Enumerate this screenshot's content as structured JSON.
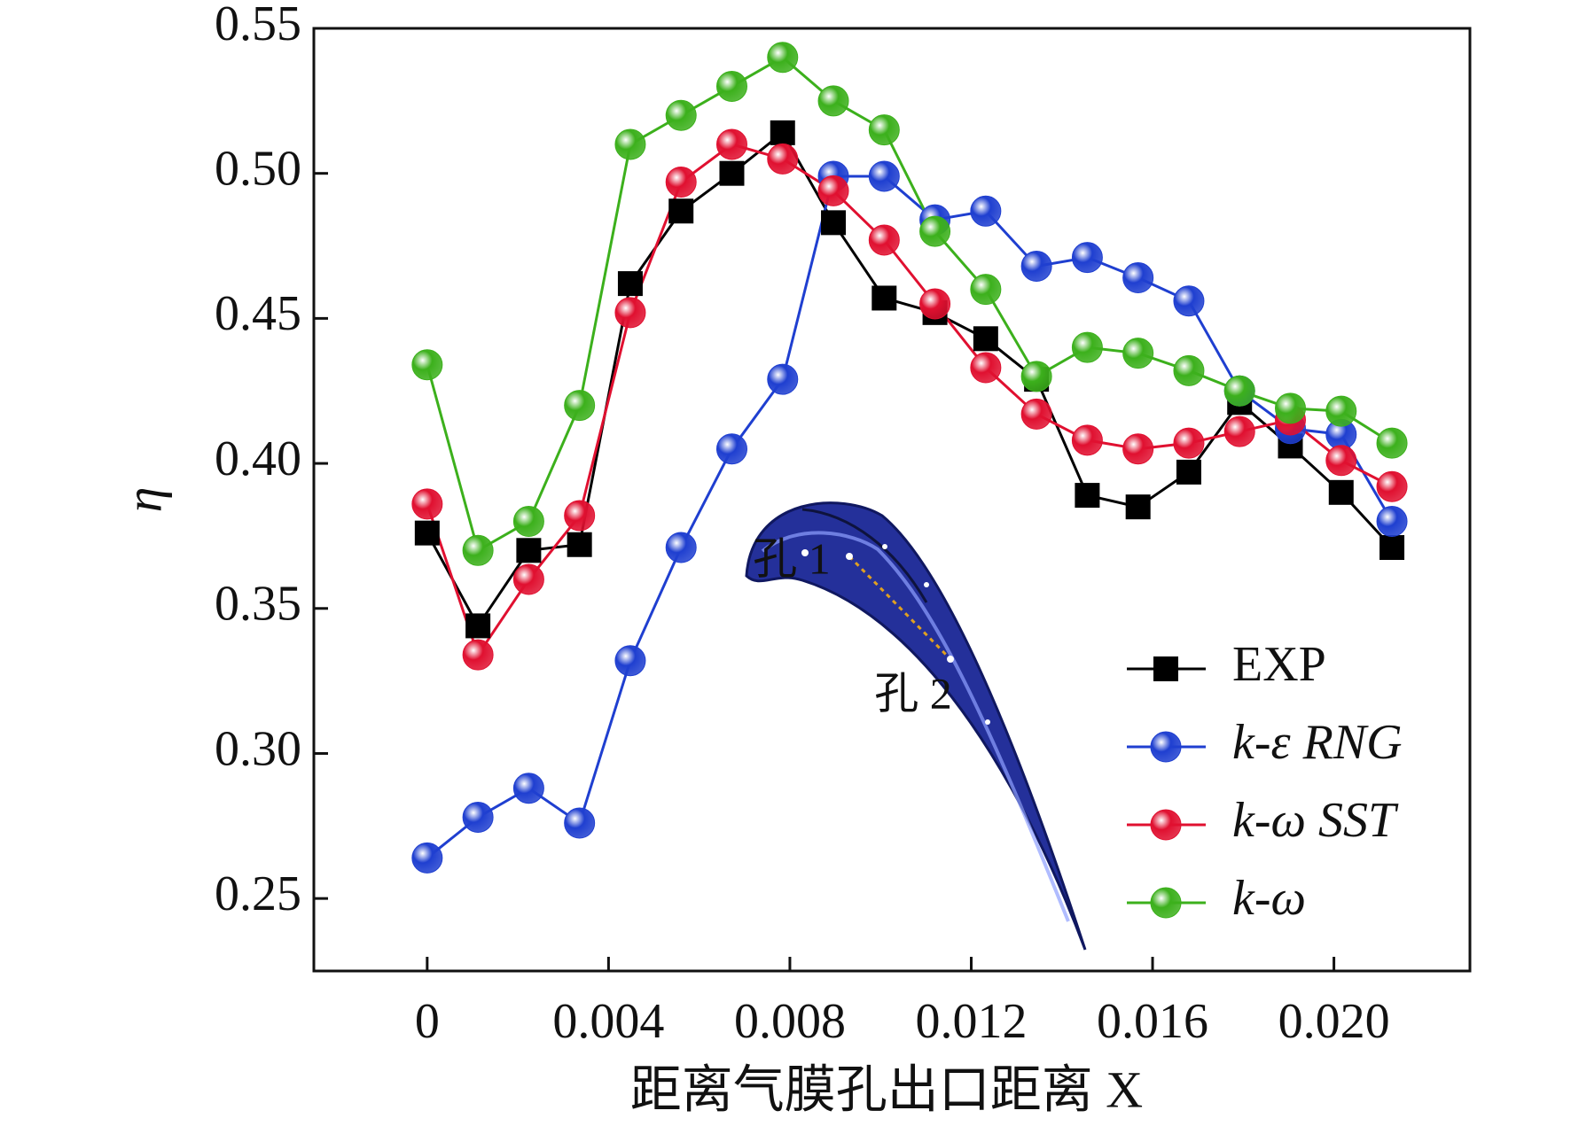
{
  "chart_data": {
    "type": "line",
    "x_label": "距离气膜孔出口距离 X",
    "y_label": "η",
    "annotations": [
      "孔 1",
      "孔 2"
    ],
    "x": [
      0,
      0.00112,
      0.00224,
      0.00336,
      0.00448,
      0.0056,
      0.00672,
      0.00784,
      0.00896,
      0.01008,
      0.0112,
      0.01232,
      0.01344,
      0.01456,
      0.01568,
      0.0168,
      0.01792,
      0.01904,
      0.02016,
      0.02128
    ],
    "series": [
      {
        "name": "EXP",
        "color": "#000000",
        "marker": "square",
        "values": [
          0.376,
          0.344,
          0.37,
          0.372,
          0.462,
          0.487,
          0.5,
          0.514,
          0.483,
          0.457,
          0.452,
          0.443,
          0.429,
          0.389,
          0.385,
          0.397,
          0.421,
          0.406,
          0.39,
          0.371
        ]
      },
      {
        "name": "k-ε RNG",
        "color": "#1f3fd0",
        "marker": "sphere",
        "values": [
          0.264,
          0.278,
          0.288,
          0.276,
          0.332,
          0.371,
          0.405,
          0.429,
          0.499,
          0.499,
          0.484,
          0.487,
          0.468,
          0.471,
          0.464,
          0.456,
          0.425,
          0.412,
          0.41,
          0.38
        ]
      },
      {
        "name": "k-ω SST",
        "color": "#e01030",
        "marker": "sphere",
        "values": [
          0.386,
          0.334,
          0.36,
          0.382,
          0.452,
          0.497,
          0.51,
          0.505,
          0.494,
          0.477,
          0.455,
          0.433,
          0.417,
          0.408,
          0.405,
          0.407,
          0.411,
          0.415,
          0.401,
          0.392
        ]
      },
      {
        "name": "k-ω",
        "color": "#3cb01c",
        "marker": "sphere",
        "values": [
          0.434,
          0.37,
          0.38,
          0.42,
          0.51,
          0.52,
          0.53,
          0.54,
          0.525,
          0.515,
          0.48,
          0.46,
          0.43,
          0.44,
          0.438,
          0.432,
          0.425,
          0.419,
          0.418,
          0.407
        ]
      }
    ],
    "xlim": [
      -0.0025,
      0.023
    ],
    "ylim": [
      0.225,
      0.55
    ],
    "xticks": [
      0,
      0.004,
      0.008,
      0.012,
      0.016,
      {
        "value": 0.02,
        "label": "0.020"
      }
    ],
    "yticks": [
      0.25,
      {
        "value": 0.3,
        "label": "0.30"
      },
      0.35,
      {
        "value": 0.4,
        "label": "0.40"
      },
      0.45,
      {
        "value": 0.5,
        "label": "0.50"
      },
      0.55
    ],
    "grid": false,
    "legend": "lower right"
  }
}
